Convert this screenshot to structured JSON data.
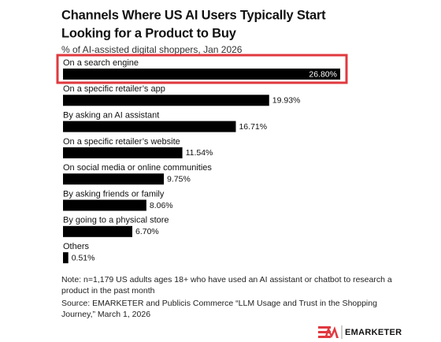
{
  "chart_data": {
    "type": "bar",
    "orientation": "horizontal",
    "title": [
      "Channels Where US AI Users Typically Start",
      "Looking for a Product to Buy"
    ],
    "subtitle": "% of AI-assisted digital shoppers, Jan 2026",
    "categories": [
      "On a search engine",
      "On a specific retailer’s app",
      "By asking an AI assistant",
      "On a specific retailer’s website",
      "On social media or online communities",
      "By asking friends or family",
      "By going to a physical store",
      "Others"
    ],
    "values": [
      26.8,
      19.93,
      16.71,
      11.54,
      9.75,
      8.06,
      6.7,
      0.51
    ],
    "value_labels": [
      "26.80%",
      "19.93%",
      "16.71%",
      "11.54%",
      "9.75%",
      "8.06%",
      "6.70%",
      "0.51%"
    ],
    "color": "#000000",
    "note": "Note: n=1,179 US adults ages 18+ who have used an AI assistant or chatbot to research a product in the past month",
    "source": "Source: EMARKETER and Publicis Commerce “LLM Usage and Trust in the Shopping Journey,” March 1, 2026",
    "brand": "EMARKETER"
  }
}
